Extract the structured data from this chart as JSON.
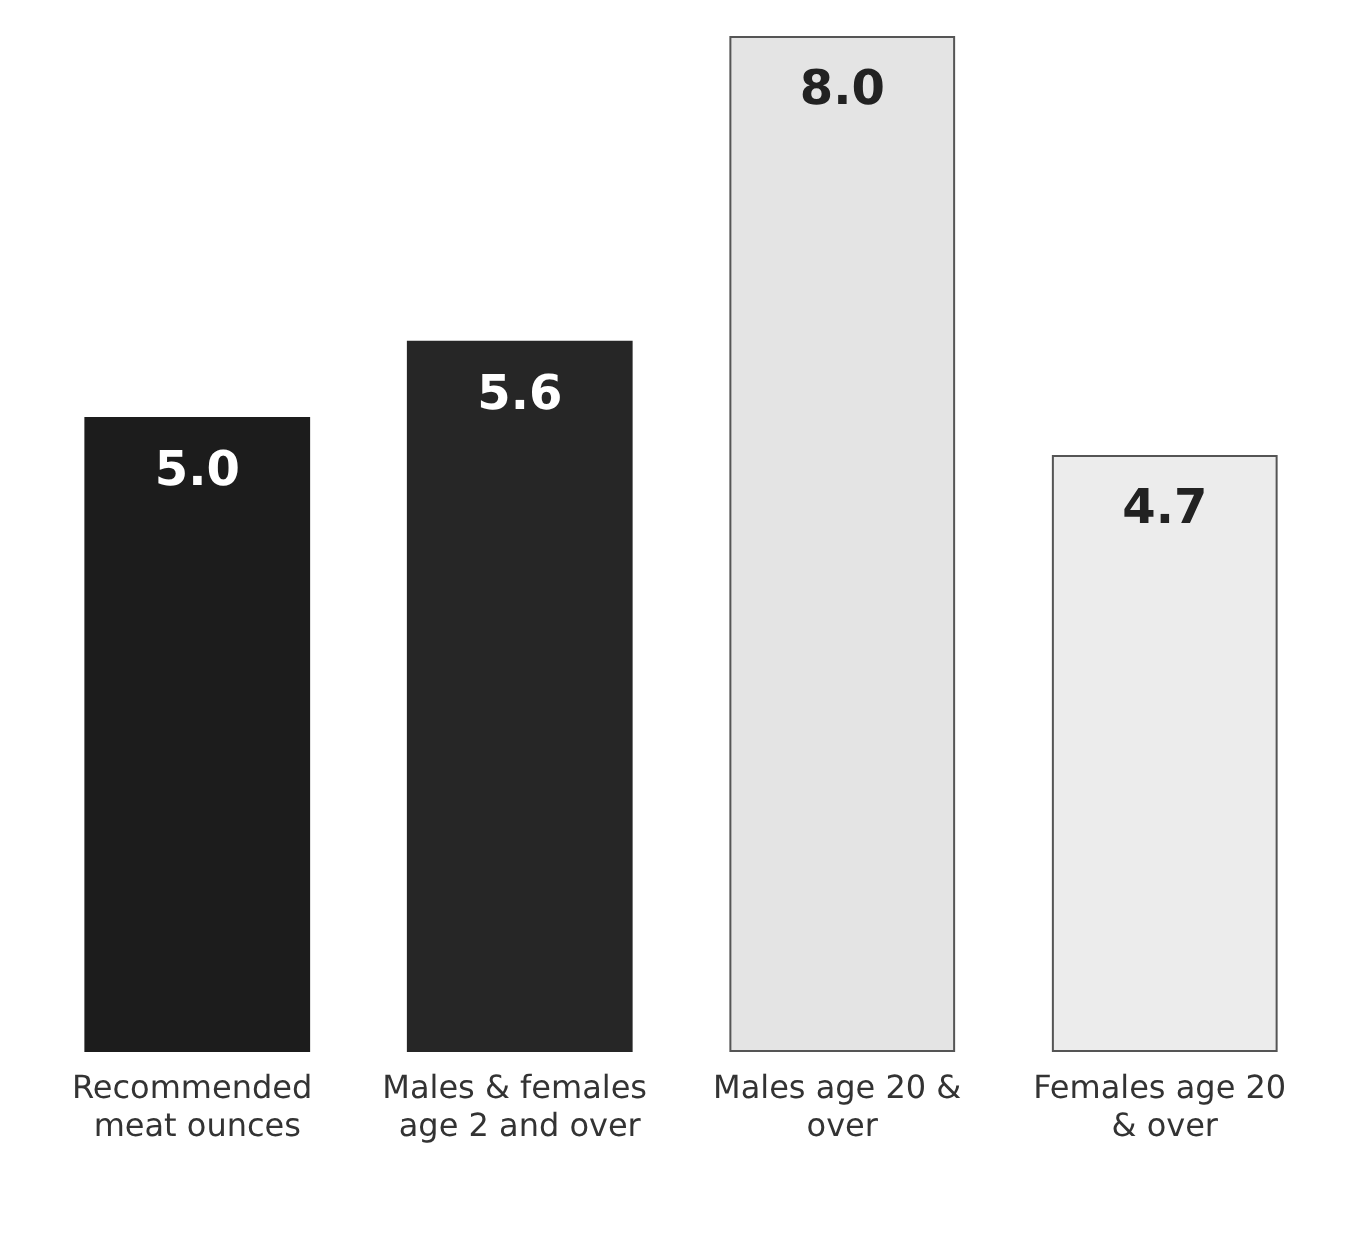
{
  "chart_data": {
    "type": "bar",
    "categories": [
      "Recommended meat ounces",
      "Males & females age 2 and over",
      "Males age 20 & over",
      "Females age 20 & over"
    ],
    "values": [
      5.0,
      5.6,
      8.0,
      4.7
    ],
    "colors": [
      "#1c1c1c",
      "#262626",
      "#e4e4e4",
      "#ececec"
    ],
    "value_labels": [
      "5.0",
      "5.6",
      "8.0",
      "4.7"
    ]
  }
}
